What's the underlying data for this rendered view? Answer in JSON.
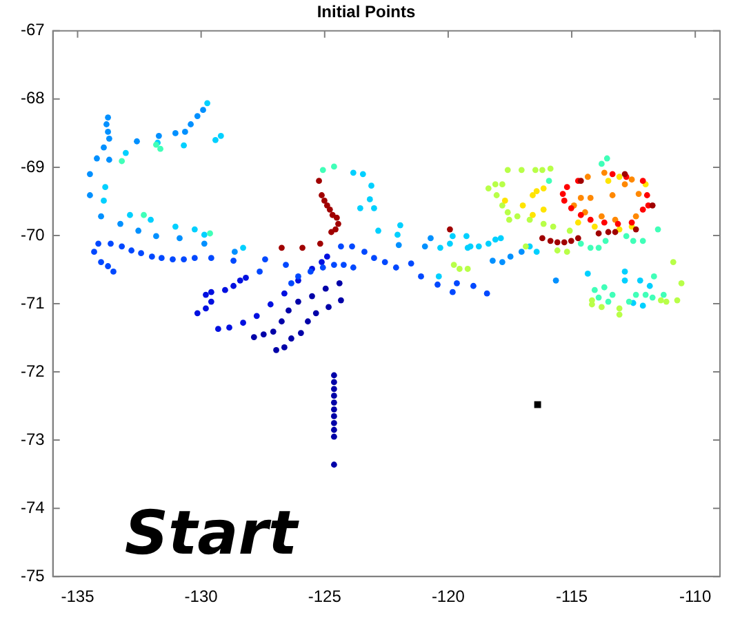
{
  "chart_data": {
    "type": "scatter",
    "title": "Initial Points",
    "marker": "circle",
    "grid": false,
    "legend": false,
    "xlim": [
      -136,
      -109
    ],
    "xticks": [
      -135,
      -130,
      -125,
      -120,
      -115,
      -110
    ],
    "ylim": [
      -75,
      -67
    ],
    "yticks": [
      -75,
      -74,
      -73,
      -72,
      -71,
      -70,
      -69,
      -68,
      -67
    ],
    "annotations": [
      "Start"
    ],
    "series": [
      {
        "color": "#0000a8",
        "x": [
          -124.62,
          -124.62,
          -124.62,
          -124.62,
          -124.62,
          -124.62,
          -124.62,
          -124.62,
          -124.62,
          -124.62,
          -124.62,
          -127.86,
          -127.47,
          -127.08,
          -126.74,
          -126.46,
          -126.07,
          -125.51,
          -124.96,
          -124.4,
          -126.96,
          -126.63,
          -126.35,
          -125.96,
          -125.68,
          -125.35,
          -124.84,
          -124.34
        ],
        "values": [
          -72.05,
          -72.15,
          -72.25,
          -72.35,
          -72.45,
          -72.55,
          -72.65,
          -72.75,
          -72.85,
          -72.95,
          -73.36,
          -71.49,
          -71.45,
          -71.41,
          -71.26,
          -71.1,
          -70.97,
          -70.89,
          -70.78,
          -70.7,
          -71.68,
          -71.64,
          -71.51,
          -71.43,
          -71.26,
          -71.14,
          -71.05,
          -70.95
        ]
      },
      {
        "color": "#0010e0",
        "x": [
          -130.15,
          -129.81,
          -129.59,
          -129.81,
          -129.59,
          -129.03,
          -128.69,
          -128.42,
          -128.19,
          -129.31,
          -128.86,
          -128.3,
          -127.75,
          -127.19,
          -126.63,
          -126.07,
          -125.51,
          -125.12,
          -124.9
        ],
        "values": [
          -71.14,
          -71.07,
          -70.97,
          -70.87,
          -70.83,
          -70.8,
          -70.74,
          -70.66,
          -70.62,
          -71.37,
          -71.35,
          -71.28,
          -71.18,
          -71.01,
          -70.85,
          -70.66,
          -70.49,
          -70.39,
          -70.31
        ]
      },
      {
        "color": "#0048ff",
        "x": [
          -134.16,
          -134.33,
          -134.05,
          -133.77,
          -133.55,
          -133.66,
          -133.21,
          -132.82,
          -132.43,
          -131.99,
          -131.6,
          -131.15,
          -130.7,
          -130.26,
          -129.59,
          -128.69,
          -127.63,
          -127.41,
          -126.57,
          -126.07,
          -125.57,
          -125.07,
          -124.62,
          -124.23,
          -123.84,
          -126.35,
          -124.34,
          -123.89,
          -123.39,
          -123,
          -122.56,
          -122.11,
          -121.5,
          -121.1,
          -120.43,
          -119.82,
          -119.65,
          -118.98,
          -118.43
        ],
        "values": [
          -70.12,
          -70.24,
          -70.39,
          -70.45,
          -70.53,
          -70.12,
          -70.16,
          -70.22,
          -70.26,
          -70.31,
          -70.33,
          -70.35,
          -70.35,
          -70.33,
          -70.33,
          -70.37,
          -70.53,
          -70.35,
          -70.43,
          -70.6,
          -70.53,
          -70.47,
          -70.43,
          -70.43,
          -70.47,
          -70.7,
          -70.16,
          -70.16,
          -70.24,
          -70.33,
          -70.39,
          -70.47,
          -70.41,
          -70.6,
          -70.72,
          -70.83,
          -70.7,
          -70.74,
          -70.85
        ]
      },
      {
        "color": "#0090ff",
        "x": [
          -133.77,
          -133.83,
          -133.77,
          -133.72,
          -133.94,
          -134.22,
          -134.5,
          -134.5,
          -134.05,
          -133.27,
          -132.54,
          -131.82,
          -130.87,
          -129.87,
          -133.72,
          -132.6,
          -131.71,
          -131.04,
          -130.65,
          -130.42,
          -130.15,
          -129.92,
          -128.64,
          -122,
          -120.94,
          -120.71,
          -118.2,
          -117.81,
          -117.48,
          -117.03,
          -115.64
        ],
        "values": [
          -68.27,
          -68.37,
          -68.48,
          -68.58,
          -68.71,
          -68.87,
          -69.1,
          -69.41,
          -69.72,
          -69.83,
          -69.93,
          -70.01,
          -70.04,
          -70.12,
          -68.89,
          -68.62,
          -68.54,
          -68.5,
          -68.48,
          -68.37,
          -68.25,
          -68.16,
          -70.24,
          -70.14,
          -70.16,
          -70.04,
          -70.37,
          -70.39,
          -70.31,
          -70.24,
          -70.66
        ]
      },
      {
        "color": "#00d0ff",
        "x": [
          -133.88,
          -133.94,
          -132.88,
          -132.04,
          -131.04,
          -130.26,
          -129.87,
          -128.3,
          -129.2,
          -129.42,
          -129.75,
          -130.7,
          -131.76,
          -133.05,
          -123.84,
          -123.45,
          -123.11,
          -123.56,
          -123.17,
          -123,
          -121.94,
          -122.05,
          -122.83,
          -120.32,
          -119.93,
          -119.26,
          -119.21,
          -120.38,
          -119.1,
          -118.76,
          -118.37,
          -118.09,
          -117.87,
          -116.7,
          -116.42,
          -114.35,
          -112.85,
          -112.85,
          -112.23,
          -111.84,
          -112.51,
          -112.12,
          -119.82
        ],
        "values": [
          -69.29,
          -69.49,
          -69.7,
          -69.77,
          -69.87,
          -69.91,
          -69.99,
          -70.18,
          -68.54,
          -68.6,
          -68.06,
          -68.68,
          -68.64,
          -68.79,
          -69.08,
          -69.1,
          -69.27,
          -69.6,
          -69.47,
          -69.6,
          -69.85,
          -69.99,
          -69.93,
          -70.18,
          -70.12,
          -70.01,
          -70.18,
          -70.6,
          -70.16,
          -70.16,
          -70.12,
          -70.06,
          -70.04,
          -70.16,
          -70.24,
          -70.56,
          -70.53,
          -70.66,
          -70.66,
          -70.74,
          -70.99,
          -71.03,
          -70.01
        ]
      },
      {
        "color": "#40ffb8",
        "x": [
          -133.21,
          -131.65,
          -132.32,
          -129.64,
          -131.82,
          -125.07,
          -124.62,
          -113.79,
          -113.57,
          -115.92,
          -113.91,
          -113.63,
          -112.79,
          -112.51,
          -112.12,
          -111.51,
          -114.24,
          -114.63,
          -114.07,
          -113.68,
          -113.91,
          -113.35,
          -113.52,
          -112.68,
          -112.4,
          -112.01,
          -111.67,
          -111.73,
          -111.28
        ],
        "values": [
          -68.91,
          -68.73,
          -69.7,
          -69.97,
          -68.67,
          -69.04,
          -68.99,
          -68.95,
          -68.87,
          -69.2,
          -70.18,
          -70.08,
          -70.01,
          -70.08,
          -70.08,
          -69.91,
          -70.18,
          -70.12,
          -70.8,
          -70.76,
          -70.91,
          -70.87,
          -70.97,
          -70.97,
          -70.87,
          -70.87,
          -70.6,
          -70.91,
          -70.87
        ]
      },
      {
        "color": "#b8ff48",
        "x": [
          -117.59,
          -117.03,
          -116.47,
          -116.19,
          -115.86,
          -118.37,
          -118.09,
          -117.81,
          -118.04,
          -117.81,
          -117.59,
          -117.53,
          -117.2,
          -116.7,
          -116.14,
          -115.75,
          -115.08,
          -119.77,
          -119.54,
          -119.21,
          -115.58,
          -115.19,
          -116.86,
          -114.18,
          -113.79,
          -113.07,
          -113.07,
          -111.39,
          -110.89,
          -110.56,
          -110.73,
          -111.17,
          -114.18
        ],
        "values": [
          -69.04,
          -69.04,
          -69.04,
          -69.04,
          -69.02,
          -69.31,
          -69.25,
          -69.25,
          -69.41,
          -69.56,
          -69.66,
          -69.77,
          -69.72,
          -69.77,
          -69.83,
          -69.87,
          -69.93,
          -70.43,
          -70.49,
          -70.49,
          -70.22,
          -70.24,
          -70.16,
          -70.95,
          -71.05,
          -71.07,
          -71.16,
          -70.95,
          -70.39,
          -70.7,
          -70.95,
          -70.97,
          -71.01
        ]
      },
      {
        "color": "#ffe400",
        "x": [
          -117.7,
          -116.98,
          -116.58,
          -116.42,
          -116.14,
          -116.58,
          -116.14,
          -114.74,
          -114.07,
          -113.07,
          -112.57,
          -113.52,
          -112.01,
          -113.07
        ],
        "values": [
          -69.49,
          -69.56,
          -69.41,
          -69.35,
          -69.31,
          -69.7,
          -69.62,
          -69.81,
          -69.87,
          -69.91,
          -69.87,
          -69.2,
          -69.25,
          -69.14
        ]
      },
      {
        "color": "#ff8800",
        "x": [
          -114.63,
          -114.24,
          -113.35,
          -112.85,
          -112.57,
          -112.29,
          -112.4,
          -113.24,
          -113.79,
          -114.46,
          -114.91,
          -114.35,
          -113.68
        ],
        "values": [
          -69.45,
          -69.45,
          -69.41,
          -69.25,
          -69.18,
          -69.39,
          -69.72,
          -69.77,
          -69.72,
          -69.66,
          -69.56,
          -69.14,
          -69.08
        ]
      },
      {
        "color": "#ff0000",
        "x": [
          -115.19,
          -115.36,
          -115.3,
          -115.02,
          -114.63,
          -114.24,
          -113.68,
          -113.13,
          -112.57,
          -112.12,
          -111.9,
          -114.74,
          -113.35,
          -112.79,
          -112.12,
          -111.95
        ],
        "values": [
          -69.29,
          -69.39,
          -69.49,
          -69.6,
          -69.7,
          -69.77,
          -69.81,
          -69.83,
          -69.81,
          -69.62,
          -69.56,
          -69.2,
          -69.1,
          -69.14,
          -69.2,
          -69.41
        ]
      },
      {
        "color": "#a00000",
        "x": [
          -125.23,
          -125.12,
          -125.01,
          -124.9,
          -124.79,
          -124.68,
          -124.51,
          -124.45,
          -124.56,
          -124.73,
          -126.74,
          -125.9,
          -125.18,
          -119.93,
          -116.19,
          -115.86,
          -115.58,
          -115.3,
          -115.02,
          -114.74,
          -113.91,
          -113.52,
          -113.24,
          -112.4,
          -114.63,
          -112.85,
          -111.73
        ],
        "values": [
          -69.2,
          -69.41,
          -69.49,
          -69.56,
          -69.62,
          -69.7,
          -69.74,
          -69.83,
          -69.91,
          -69.95,
          -70.18,
          -70.18,
          -70.12,
          -69.91,
          -70.04,
          -70.08,
          -70.1,
          -70.1,
          -70.08,
          -70.04,
          -69.97,
          -69.95,
          -69.95,
          -69.91,
          -69.2,
          -69.1,
          -69.56
        ]
      },
      {
        "color": "#000000",
        "marker": "square",
        "x": [
          -116.38
        ],
        "values": [
          -72.48
        ]
      }
    ]
  }
}
